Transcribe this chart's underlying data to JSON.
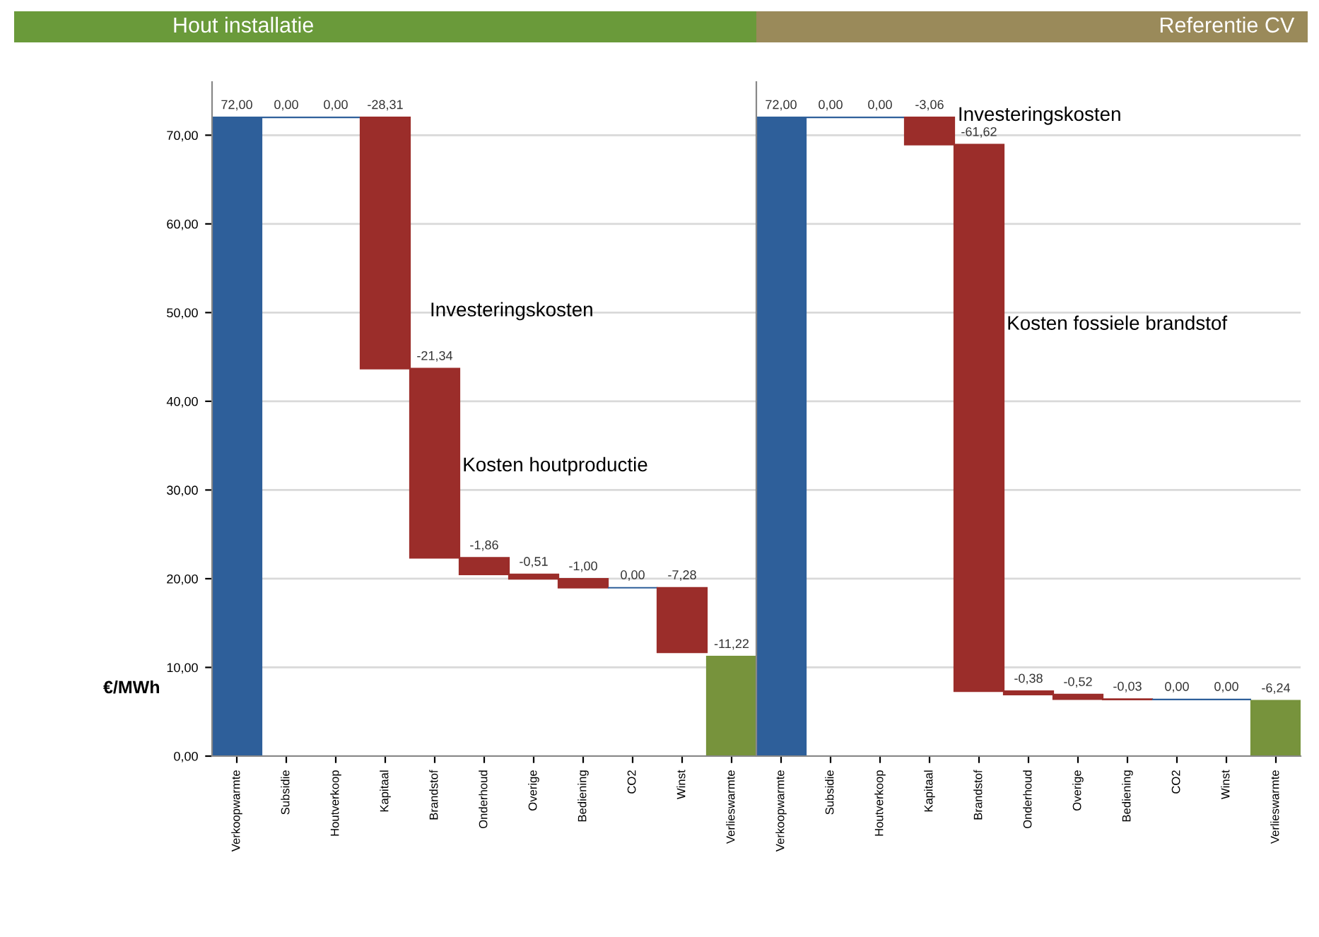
{
  "chart_data": [
    {
      "type": "bar",
      "title": "Hout installatie",
      "ylabel": "€/MWh",
      "categories": [
        "Verkoopwarmte",
        "Subsidie",
        "Houtverkoop",
        "Kapitaal",
        "Brandstof",
        "Onderhoud",
        "Overige",
        "Bediening",
        "CO2",
        "Winst",
        "Verlieswarmte"
      ],
      "values": [
        72.0,
        0.0,
        0.0,
        -28.31,
        -21.34,
        -1.86,
        -0.51,
        -1.0,
        0.0,
        -7.28,
        -11.22
      ],
      "base": [
        0,
        72.0,
        72.0,
        72.0,
        43.69,
        22.35,
        20.49,
        19.98,
        18.98,
        18.98,
        11.22
      ],
      "colors": [
        "#2e5f9a",
        "#2e5f9a",
        "#2e5f9a",
        "#9b2d2a",
        "#9b2d2a",
        "#9b2d2a",
        "#9b2d2a",
        "#9b2d2a",
        "#2e5f9a",
        "#9b2d2a",
        "#77933c"
      ],
      "value_labels": [
        "72,00",
        "0,00",
        "0,00",
        "-28,31",
        "-21,34",
        "-1,86",
        "-0,51",
        "-1,00",
        "0,00",
        "-7,28",
        "-11,22"
      ],
      "ylim": [
        0,
        76
      ],
      "yticks": [
        {
          "value": 0,
          "label": "0,00"
        },
        {
          "value": 10,
          "label": "10,00"
        },
        {
          "value": 20,
          "label": "20,00"
        },
        {
          "value": 30,
          "label": "30,00"
        },
        {
          "value": 40,
          "label": "40,00"
        },
        {
          "value": 50,
          "label": "50,00"
        },
        {
          "value": 60,
          "label": "60,00"
        },
        {
          "value": 70,
          "label": "70,00"
        }
      ],
      "grid": "y",
      "annotations": [
        "Investeringskosten",
        "Kosten houtproductie"
      ]
    },
    {
      "type": "bar",
      "title": "Referentie CV",
      "categories": [
        "Verkoopwarmte",
        "Subsidie",
        "Houtverkoop",
        "Kapitaal",
        "Brandstof",
        "Onderhoud",
        "Overige",
        "Bediening",
        "CO2",
        "Winst",
        "Verlieswarmte"
      ],
      "values": [
        72.0,
        0.0,
        0.0,
        -3.06,
        -61.62,
        -0.38,
        -0.52,
        -0.03,
        0.0,
        0.0,
        -6.24
      ],
      "base": [
        0,
        72.0,
        72.0,
        72.0,
        68.94,
        7.32,
        6.94,
        6.42,
        6.39,
        6.39,
        6.24
      ],
      "colors": [
        "#2e5f9a",
        "#2e5f9a",
        "#2e5f9a",
        "#9b2d2a",
        "#9b2d2a",
        "#9b2d2a",
        "#9b2d2a",
        "#9b2d2a",
        "#2e5f9a",
        "#2e5f9a",
        "#77933c"
      ],
      "value_labels": [
        "72,00",
        "0,00",
        "0,00",
        "-3,06",
        "-61,62",
        "-0,38",
        "-0,52",
        "-0,03",
        "0,00",
        "0,00",
        "-6,24"
      ],
      "ylim": [
        0,
        76
      ],
      "yticks": [
        {
          "value": 0,
          "label": null
        },
        {
          "value": 10,
          "label": null
        },
        {
          "value": 20,
          "label": null
        },
        {
          "value": 30,
          "label": null
        },
        {
          "value": 40,
          "label": null
        },
        {
          "value": 50,
          "label": null
        },
        {
          "value": 60,
          "label": null
        },
        {
          "value": 70,
          "label": null
        }
      ],
      "tick_labels": "x",
      "grid": "y",
      "annotations": [
        "Investeringskosten",
        "Kosten fossiele brandstof"
      ]
    }
  ]
}
